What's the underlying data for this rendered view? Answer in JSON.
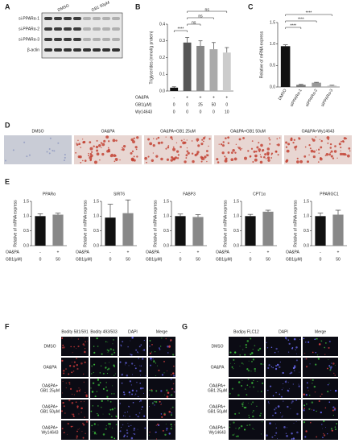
{
  "panel_labels": [
    "A",
    "B",
    "C",
    "D",
    "E",
    "F",
    "G"
  ],
  "blot": {
    "lanes": [
      "DMSO",
      "GB1 50μM"
    ],
    "rows": [
      "si-PPARα-1",
      "si-PPARα-2",
      "si-PPARα-3",
      "β-actin"
    ]
  },
  "staining": {
    "labels": [
      "DMSO",
      "OA&PA",
      "OA&PA+GB1 25uM",
      "OA&PA+GB1 50uM",
      "OA&PA+Wy14643"
    ]
  },
  "fluorescence_f": {
    "columns": [
      "Bodity 581/591",
      "Bodity 493/503",
      "DAPI",
      "Merge"
    ],
    "rows": [
      [
        "DMSO"
      ],
      [
        "OA&PA"
      ],
      [
        "OA&PA+",
        "GB1 25μM"
      ],
      [
        "OA&PA+",
        "GB1 50μM"
      ],
      [
        "OA&PA+",
        "Wy14643"
      ]
    ]
  },
  "fluorescence_g": {
    "columns": [
      "Bodipy FLC12",
      "DAPI",
      "Merge"
    ],
    "rows": [
      [
        "DMSO"
      ],
      [
        "OA&PA"
      ],
      [
        "OA&PA+",
        "GB1 25μM"
      ],
      [
        "OA&PA+",
        "GB1 50μM"
      ],
      [
        "OA&PA+",
        "Wy14643"
      ]
    ]
  },
  "chart_data": [
    {
      "type": "bar",
      "ylabel": "Triglycerides (mmol/g protein)",
      "values": [
        0.02,
        0.29,
        0.27,
        0.25,
        0.23
      ],
      "errors": [
        0.005,
        0.03,
        0.03,
        0.04,
        0.03
      ],
      "colors": [
        "#111111",
        "#555555",
        "#888888",
        "#aaaaaa",
        "#cccccc"
      ],
      "ylim": [
        0,
        0.4
      ],
      "yticks": [
        {
          "value": 0,
          "label": "0.0"
        },
        0.1,
        0.2,
        0.3,
        0.4
      ],
      "significance": [
        "****",
        "ns",
        "ns",
        "ns"
      ],
      "conditions": [
        {
          "label": "OA&PA",
          "values": [
            "-",
            "+",
            "+",
            "+",
            "+"
          ]
        },
        {
          "label": "GB1(μM)",
          "values": [
            0,
            0,
            25,
            50,
            0
          ]
        },
        {
          "label": "Wy14643",
          "values": [
            0,
            0,
            0,
            0,
            10
          ]
        }
      ]
    },
    {
      "type": "bar",
      "ylabel": "Relative of mRNA express",
      "categories": [
        "DMSO",
        "siPPARα-1",
        "siPPARα-2",
        "siPPARα-3"
      ],
      "values": [
        0.95,
        0.05,
        0.1,
        0.03
      ],
      "errors": [
        0.03,
        0.01,
        0.01,
        0.01
      ],
      "colors": [
        "#111111",
        "#777777",
        "#999999",
        "#bbbbbb"
      ],
      "ylim": [
        0,
        1.5
      ],
      "yticks": [
        {
          "value": 0,
          "label": "0.0"
        },
        0.5,
        {
          "value": 1,
          "label": "1.0"
        },
        1.5
      ],
      "significance": [
        "****",
        "****",
        "****"
      ]
    },
    {
      "type": "bar",
      "title": "PPARα",
      "ylabel": "Relative of mRNA express",
      "values": [
        1.0,
        1.05
      ],
      "errors": [
        0.08,
        0.05
      ],
      "colors": [
        "#111111",
        "#888888"
      ],
      "ylim": [
        0,
        1.5
      ],
      "yticks": [
        {
          "value": 0,
          "label": "0.0"
        },
        0.5,
        {
          "value": 1,
          "label": "1.0"
        },
        1.5
      ],
      "conditions": [
        {
          "label": "OA&PA",
          "values": [
            "-",
            "+"
          ]
        },
        {
          "label": "GB1(μM)",
          "values": [
            0,
            50
          ]
        }
      ]
    },
    {
      "type": "bar",
      "title": "SIRT6",
      "ylabel": "Relative of mRNA express",
      "values": [
        0.95,
        1.1
      ],
      "errors": [
        0.45,
        0.45
      ],
      "colors": [
        "#111111",
        "#888888"
      ],
      "ylim": [
        0,
        1.5
      ],
      "yticks": [
        {
          "value": 0,
          "label": "0.0"
        },
        0.5,
        {
          "value": 1,
          "label": "1.0"
        },
        1.5
      ],
      "conditions": [
        {
          "label": "OA&PA",
          "values": [
            "-",
            "+"
          ]
        },
        {
          "label": "GB1(μM)",
          "values": [
            0,
            50
          ]
        }
      ]
    },
    {
      "type": "bar",
      "title": "FABP3",
      "ylabel": "Relative of mRNA express",
      "values": [
        1.0,
        0.97
      ],
      "errors": [
        0.07,
        0.08
      ],
      "colors": [
        "#111111",
        "#888888"
      ],
      "ylim": [
        0,
        1.5
      ],
      "yticks": [
        {
          "value": 0,
          "label": "0.0"
        },
        0.5,
        {
          "value": 1,
          "label": "1.0"
        },
        1.5
      ],
      "conditions": [
        {
          "label": "OA&PA",
          "values": [
            "-",
            "+"
          ]
        },
        {
          "label": "GB1(μM)",
          "values": [
            0,
            50
          ]
        }
      ]
    },
    {
      "type": "bar",
      "title": "CPT1α",
      "ylabel": "Relative of mRNA express",
      "values": [
        1.0,
        1.15
      ],
      "errors": [
        0.06,
        0.05
      ],
      "colors": [
        "#111111",
        "#888888"
      ],
      "ylim": [
        0,
        1.5
      ],
      "yticks": [
        {
          "value": 0,
          "label": "0.0"
        },
        0.5,
        {
          "value": 1,
          "label": "1.0"
        },
        1.5
      ],
      "conditions": [
        {
          "label": "OA&PA",
          "values": [
            "-",
            "+"
          ]
        },
        {
          "label": "GB1(μM)",
          "values": [
            0,
            50
          ]
        }
      ]
    },
    {
      "type": "bar",
      "title": "PPARGC1",
      "ylabel": "Relative of mRNA express",
      "values": [
        1.0,
        1.05
      ],
      "errors": [
        0.1,
        0.15
      ],
      "colors": [
        "#111111",
        "#888888"
      ],
      "ylim": [
        0,
        1.5
      ],
      "yticks": [
        {
          "value": 0,
          "label": "0.0"
        },
        0.5,
        {
          "value": 1,
          "label": "1.0"
        },
        1.5
      ],
      "conditions": [
        {
          "label": "OA&PA",
          "values": [
            "-",
            "+"
          ]
        },
        {
          "label": "GB1(μM)",
          "values": [
            0,
            50
          ]
        }
      ]
    }
  ]
}
